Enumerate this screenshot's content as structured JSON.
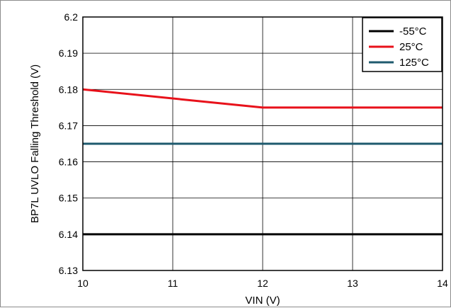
{
  "chart_data": {
    "type": "line",
    "title": "",
    "xlabel": "VIN (V)",
    "ylabel": "BP7L UVLO Falling Threshold (V)",
    "xlim": [
      10,
      14
    ],
    "ylim": [
      6.13,
      6.2
    ],
    "x_ticks": [
      10,
      11,
      12,
      13,
      14
    ],
    "x_tick_labels": [
      "10",
      "11",
      "12",
      "13",
      "14"
    ],
    "y_ticks": [
      6.13,
      6.14,
      6.15,
      6.16,
      6.17,
      6.18,
      6.19,
      6.2
    ],
    "y_tick_labels": [
      "6.13",
      "6.14",
      "6.15",
      "6.16",
      "6.17",
      "6.18",
      "6.19",
      "6.2"
    ],
    "grid": true,
    "legend_position": "top-right",
    "series": [
      {
        "name": "-55°C",
        "color": "#000000",
        "x": [
          10,
          11,
          12,
          13,
          14
        ],
        "y": [
          6.14,
          6.14,
          6.14,
          6.14,
          6.14
        ]
      },
      {
        "name": "25°C",
        "color": "#e8111a",
        "x": [
          10,
          12,
          13,
          14
        ],
        "y": [
          6.18,
          6.175,
          6.175,
          6.175
        ]
      },
      {
        "name": "125°C",
        "color": "#1e5a6e",
        "x": [
          10,
          11,
          12,
          13,
          14
        ],
        "y": [
          6.165,
          6.165,
          6.165,
          6.165,
          6.165
        ]
      }
    ]
  }
}
